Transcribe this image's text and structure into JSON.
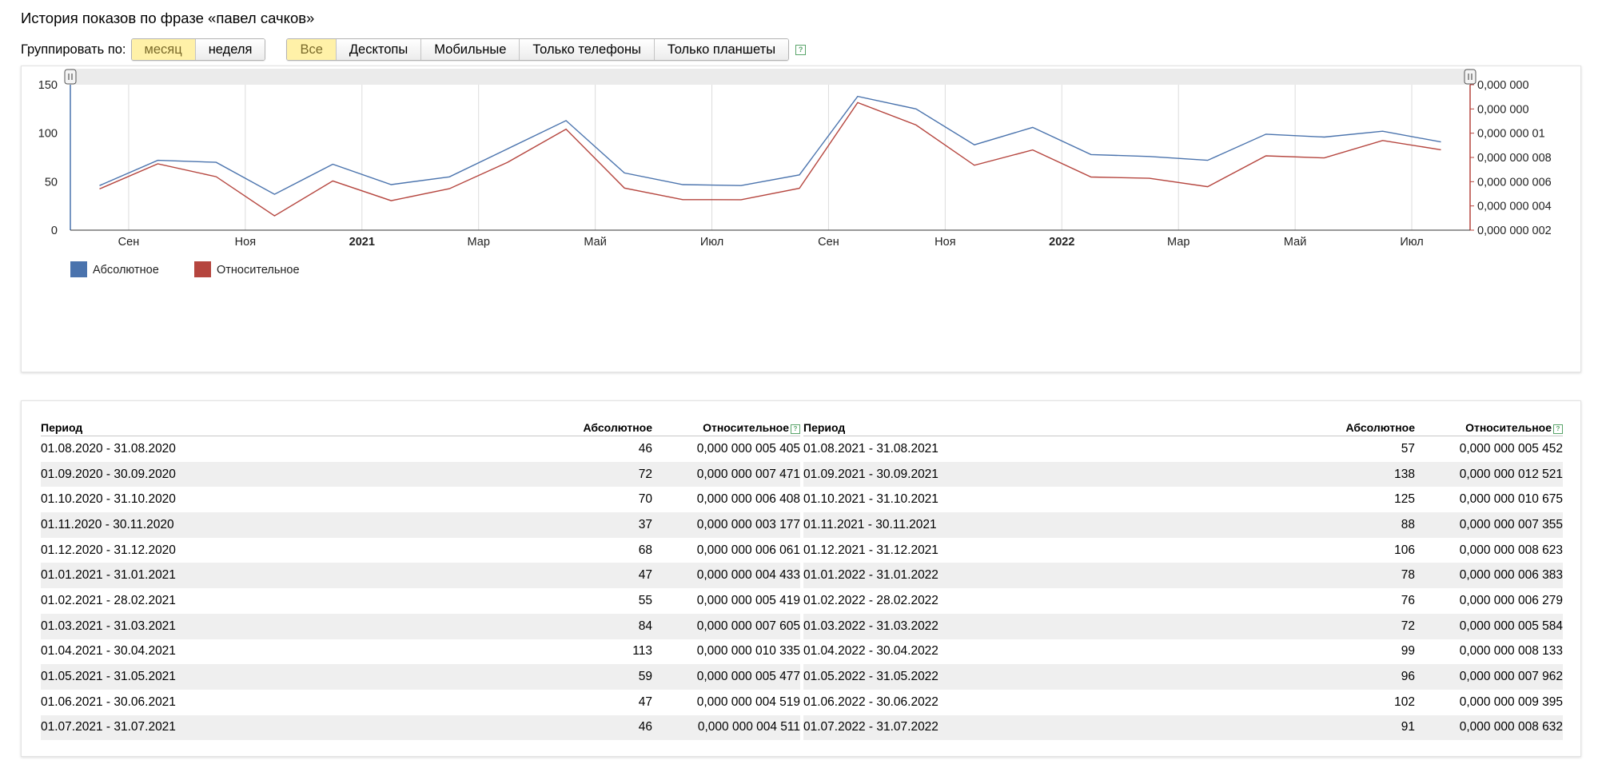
{
  "page": {
    "title": "История показов по фразе «павел сачков»"
  },
  "controls": {
    "group_label": "Группировать по:",
    "group_buttons": [
      "месяц",
      "неделя"
    ],
    "group_active": 0,
    "device_buttons": [
      "Все",
      "Десктопы",
      "Мобильные",
      "Только телефоны",
      "Только планшеты"
    ],
    "device_active": 0,
    "help_symbol": "?"
  },
  "colors": {
    "absolute": "#4a73ad",
    "relative": "#b5453e",
    "active_button": "#fff1a8"
  },
  "chart_data": {
    "type": "line",
    "title": "",
    "categories": [
      "Авг 2020",
      "Сен 2020",
      "Окт 2020",
      "Ноя 2020",
      "Дек 2020",
      "Янв 2021",
      "Фев 2021",
      "Мар 2021",
      "Апр 2021",
      "Май 2021",
      "Июн 2021",
      "Июл 2021",
      "Авг 2021",
      "Сен 2021",
      "Окт 2021",
      "Ноя 2021",
      "Дек 2021",
      "Янв 2022",
      "Фев 2022",
      "Мар 2022",
      "Апр 2022",
      "Май 2022",
      "Июн 2022",
      "Июл 2022"
    ],
    "x_tick_labels": [
      "Сен",
      "Ноя",
      "2021",
      "Мар",
      "Май",
      "Июл",
      "Сен",
      "Ноя",
      "2022",
      "Мар",
      "Май",
      "Июл"
    ],
    "left_axis": {
      "ticks": [
        "0",
        "50",
        "100",
        "150"
      ],
      "range": [
        0,
        150
      ]
    },
    "right_axis": {
      "ticks": [
        "0,000 000 002",
        "0,000 000 004",
        "0,000 000 006",
        "0,000 000 008",
        "0,000 000 01",
        "0,000 000",
        "0,000 000"
      ],
      "range": [
        2e-09,
        1.4e-08
      ]
    },
    "series": [
      {
        "name": "Абсолютное",
        "axis": "left",
        "values": [
          46,
          72,
          70,
          37,
          68,
          47,
          55,
          84,
          113,
          59,
          47,
          46,
          57,
          138,
          125,
          88,
          106,
          78,
          76,
          72,
          99,
          96,
          102,
          91
        ]
      },
      {
        "name": "Относительное",
        "axis": "right",
        "values": [
          5.405e-09,
          7.471e-09,
          6.408e-09,
          3.177e-09,
          6.061e-09,
          4.433e-09,
          5.419e-09,
          7.605e-09,
          1.0335e-08,
          5.477e-09,
          4.519e-09,
          4.511e-09,
          5.452e-09,
          1.2521e-08,
          1.0675e-08,
          7.355e-09,
          8.623e-09,
          6.383e-09,
          6.279e-09,
          5.584e-09,
          8.133e-09,
          7.962e-09,
          9.395e-09,
          8.632e-09
        ]
      }
    ],
    "legend": [
      "Абсолютное",
      "Относительное"
    ],
    "legend_position": "bottom-left",
    "grid": true
  },
  "table": {
    "headers": [
      "Период",
      "Абсолютное",
      "Относительное"
    ],
    "left_rows": [
      [
        "01.08.2020 - 31.08.2020",
        "46",
        "0,000 000 005 405"
      ],
      [
        "01.09.2020 - 30.09.2020",
        "72",
        "0,000 000 007 471"
      ],
      [
        "01.10.2020 - 31.10.2020",
        "70",
        "0,000 000 006 408"
      ],
      [
        "01.11.2020 - 30.11.2020",
        "37",
        "0,000 000 003 177"
      ],
      [
        "01.12.2020 - 31.12.2020",
        "68",
        "0,000 000 006 061"
      ],
      [
        "01.01.2021 - 31.01.2021",
        "47",
        "0,000 000 004 433"
      ],
      [
        "01.02.2021 - 28.02.2021",
        "55",
        "0,000 000 005 419"
      ],
      [
        "01.03.2021 - 31.03.2021",
        "84",
        "0,000 000 007 605"
      ],
      [
        "01.04.2021 - 30.04.2021",
        "113",
        "0,000 000 010 335"
      ],
      [
        "01.05.2021 - 31.05.2021",
        "59",
        "0,000 000 005 477"
      ],
      [
        "01.06.2021 - 30.06.2021",
        "47",
        "0,000 000 004 519"
      ],
      [
        "01.07.2021 - 31.07.2021",
        "46",
        "0,000 000 004 511"
      ]
    ],
    "right_rows": [
      [
        "01.08.2021 - 31.08.2021",
        "57",
        "0,000 000 005 452"
      ],
      [
        "01.09.2021 - 30.09.2021",
        "138",
        "0,000 000 012 521"
      ],
      [
        "01.10.2021 - 31.10.2021",
        "125",
        "0,000 000 010 675"
      ],
      [
        "01.11.2021 - 30.11.2021",
        "88",
        "0,000 000 007 355"
      ],
      [
        "01.12.2021 - 31.12.2021",
        "106",
        "0,000 000 008 623"
      ],
      [
        "01.01.2022 - 31.01.2022",
        "78",
        "0,000 000 006 383"
      ],
      [
        "01.02.2022 - 28.02.2022",
        "76",
        "0,000 000 006 279"
      ],
      [
        "01.03.2022 - 31.03.2022",
        "72",
        "0,000 000 005 584"
      ],
      [
        "01.04.2022 - 30.04.2022",
        "99",
        "0,000 000 008 133"
      ],
      [
        "01.05.2022 - 31.05.2022",
        "96",
        "0,000 000 007 962"
      ],
      [
        "01.06.2022 - 30.06.2022",
        "102",
        "0,000 000 009 395"
      ],
      [
        "01.07.2022 - 31.07.2022",
        "91",
        "0,000 000 008 632"
      ]
    ]
  }
}
